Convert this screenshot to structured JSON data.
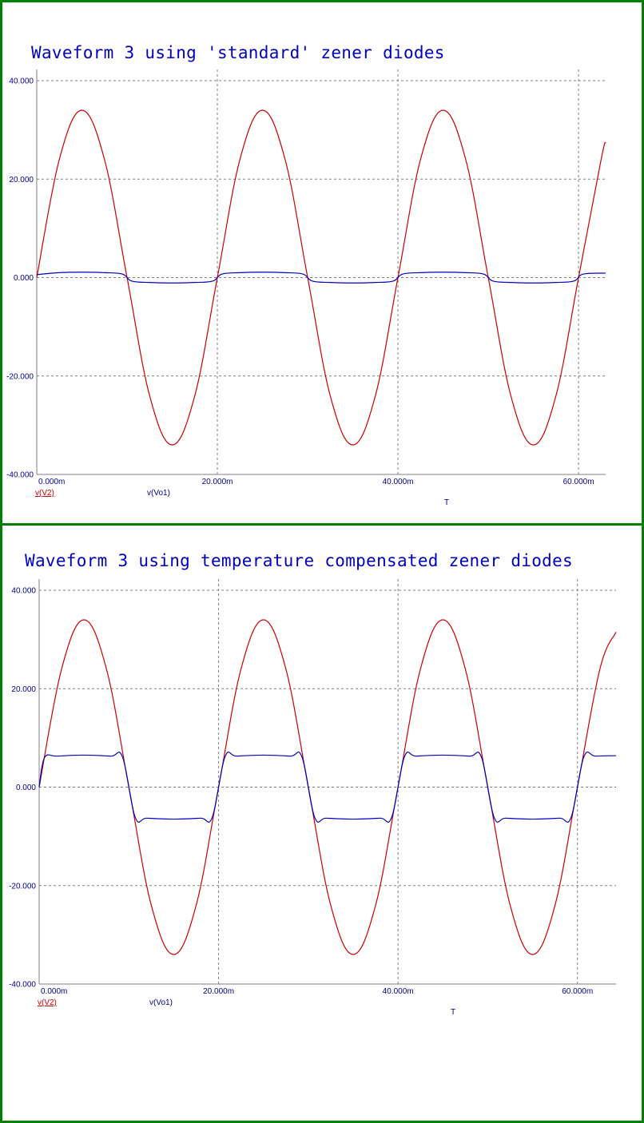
{
  "colors": {
    "border": "#008000",
    "title": "#0000c0",
    "axis_text": "#00008b",
    "grid": "#808080",
    "series_v2": "#cc0000",
    "series_vo1": "#0000c0"
  },
  "chart_data": [
    {
      "type": "line",
      "title": "Waveform 3 using 'standard' zener diodes",
      "x_unit": "seconds",
      "xlim": [
        0,
        0.063
      ],
      "ylim": [
        -40,
        40
      ],
      "x_ticks": [
        {
          "value": 0,
          "label": "0.000m"
        },
        {
          "value": 0.02,
          "label": "20.000m"
        },
        {
          "value": 0.04,
          "label": "40.000m"
        },
        {
          "value": 0.06,
          "label": "60.000m"
        }
      ],
      "y_ticks": [
        {
          "value": 40,
          "label": "40.000"
        },
        {
          "value": 20,
          "label": "20.000"
        },
        {
          "value": 0,
          "label": "0.000"
        },
        {
          "value": -20,
          "label": "-20.000"
        },
        {
          "value": -40,
          "label": "-40.000"
        }
      ],
      "x_axis_marker": "T",
      "grid": true,
      "legend": [
        "v(V2)",
        "v(Vo1)"
      ],
      "series": [
        {
          "name": "v(V2)",
          "color": "#cc0000",
          "x": [
            0,
            0.0025,
            0.005,
            0.0075,
            0.01,
            0.0125,
            0.015,
            0.0175,
            0.02,
            0.0225,
            0.025,
            0.0275,
            0.03,
            0.0325,
            0.035,
            0.0375,
            0.04,
            0.0425,
            0.045,
            0.0475,
            0.05,
            0.0525,
            0.055,
            0.0575,
            0.06,
            0.0625,
            0.063
          ],
          "y": [
            0,
            24,
            34,
            24,
            0,
            -24,
            -34,
            -24,
            0,
            24,
            34,
            24,
            0,
            -24,
            -34,
            -24,
            0,
            24,
            34,
            24,
            0,
            -24,
            -34,
            -24,
            0,
            24,
            27.5
          ]
        },
        {
          "name": "v(Vo1)",
          "color": "#0000c0",
          "x": [
            0,
            0.0025,
            0.005,
            0.0075,
            0.0095,
            0.0105,
            0.0125,
            0.015,
            0.0175,
            0.0195,
            0.0205,
            0.0225,
            0.025,
            0.0275,
            0.0295,
            0.0305,
            0.0325,
            0.035,
            0.0375,
            0.0395,
            0.0405,
            0.0425,
            0.045,
            0.0475,
            0.0495,
            0.0505,
            0.0525,
            0.055,
            0.0575,
            0.0595,
            0.0605,
            0.063
          ],
          "y": [
            0.6,
            1.0,
            1.1,
            1.0,
            0.7,
            -0.7,
            -1.0,
            -1.1,
            -1.0,
            -0.7,
            0.7,
            1.0,
            1.1,
            1.0,
            0.7,
            -0.7,
            -1.0,
            -1.1,
            -1.0,
            -0.7,
            0.7,
            1.0,
            1.1,
            1.0,
            0.7,
            -0.7,
            -1.0,
            -1.1,
            -1.0,
            -0.7,
            0.7,
            0.9
          ]
        }
      ]
    },
    {
      "type": "line",
      "title": "Waveform 3 using temperature compensated zener diodes",
      "x_unit": "seconds",
      "xlim": [
        0,
        0.0643
      ],
      "ylim": [
        -40,
        40
      ],
      "x_ticks": [
        {
          "value": 0,
          "label": "0.000m"
        },
        {
          "value": 0.02,
          "label": "20.000m"
        },
        {
          "value": 0.04,
          "label": "40.000m"
        },
        {
          "value": 0.06,
          "label": "60.000m"
        }
      ],
      "y_ticks": [
        {
          "value": 40,
          "label": "40.000"
        },
        {
          "value": 20,
          "label": "20.000"
        },
        {
          "value": 0,
          "label": "0.000"
        },
        {
          "value": -20,
          "label": "-20.000"
        },
        {
          "value": -40,
          "label": "-40.000"
        }
      ],
      "x_axis_marker": "T",
      "grid": true,
      "legend": [
        "v(V2)",
        "v(Vo1)"
      ],
      "series": [
        {
          "name": "v(V2)",
          "color": "#cc0000",
          "x": [
            0,
            0.0025,
            0.005,
            0.0075,
            0.01,
            0.0125,
            0.015,
            0.0175,
            0.02,
            0.0225,
            0.025,
            0.0275,
            0.03,
            0.0325,
            0.035,
            0.0375,
            0.04,
            0.0425,
            0.045,
            0.0475,
            0.05,
            0.0525,
            0.055,
            0.0575,
            0.06,
            0.0625,
            0.0643
          ],
          "y": [
            0,
            24,
            34,
            24,
            0,
            -24,
            -34,
            -24,
            0,
            24,
            34,
            24,
            0,
            -24,
            -34,
            -24,
            0,
            24,
            34,
            24,
            0,
            -24,
            -34,
            -24,
            0,
            24,
            31.5
          ]
        },
        {
          "name": "v(Vo1)",
          "color": "#0000c0",
          "x": [
            0,
            0.0006,
            0.002,
            0.005,
            0.008,
            0.0093,
            0.0107,
            0.012,
            0.015,
            0.018,
            0.0193,
            0.0207,
            0.022,
            0.025,
            0.028,
            0.0293,
            0.0307,
            0.032,
            0.035,
            0.038,
            0.0393,
            0.0407,
            0.042,
            0.045,
            0.048,
            0.0493,
            0.0507,
            0.052,
            0.055,
            0.058,
            0.0593,
            0.0607,
            0.062,
            0.0643
          ],
          "y": [
            0,
            6.0,
            6.3,
            6.5,
            6.3,
            6.1,
            -6.1,
            -6.3,
            -6.5,
            -6.3,
            -6.1,
            6.1,
            6.3,
            6.5,
            6.3,
            6.1,
            -6.1,
            -6.3,
            -6.5,
            -6.3,
            -6.1,
            6.1,
            6.3,
            6.5,
            6.3,
            6.1,
            -6.1,
            -6.3,
            -6.5,
            -6.3,
            -6.1,
            6.1,
            6.3,
            6.4
          ]
        }
      ]
    }
  ]
}
